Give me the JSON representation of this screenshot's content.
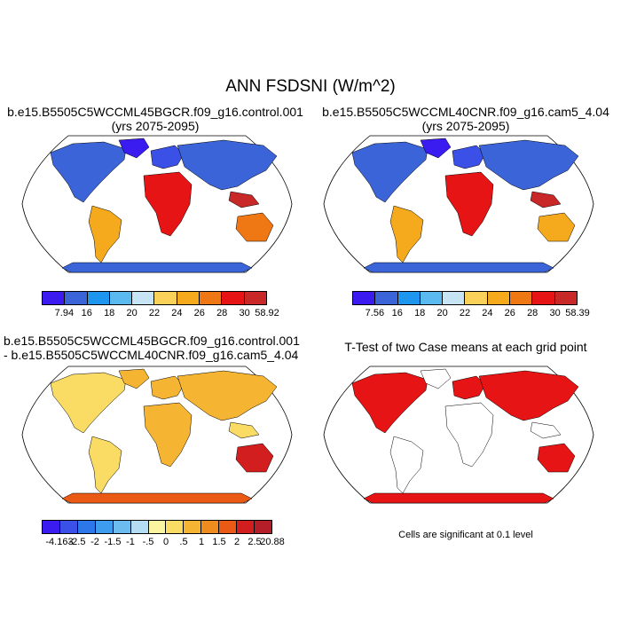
{
  "title": "ANN FSDSNI (W/m^2)",
  "panels": {
    "p1": {
      "title_line1": "b.e15.B5505C5WCCML45BGCR.f09_g16.control.001",
      "title_line2": "(yrs 2075-2095)",
      "colors": [
        "#3a1cf0",
        "#3a64d8",
        "#1e96f0",
        "#5ab9ee",
        "#c6e4f3",
        "#fad25a",
        "#f5aa1e",
        "#f07814",
        "#e61414",
        "#c82828"
      ],
      "labels": [
        "7.94",
        "16",
        "18",
        "20",
        "22",
        "24",
        "26",
        "28",
        "30",
        "58.92"
      ]
    },
    "p2": {
      "title_line1": "b.e15.B5505C5WCCML40CNR.f09_g16.cam5_4.04",
      "title_line2": "(yrs 2075-2095)",
      "colors": [
        "#3a1cf0",
        "#3a64d8",
        "#1e96f0",
        "#5ab9ee",
        "#c6e4f3",
        "#fad25a",
        "#f5aa1e",
        "#f07814",
        "#e61414",
        "#c82828"
      ],
      "labels": [
        "7.56",
        "16",
        "18",
        "20",
        "22",
        "24",
        "26",
        "28",
        "30",
        "58.39"
      ]
    },
    "p3": {
      "title_line1": "b.e15.B5505C5WCCML45BGCR.f09_g16.control.001",
      "title_line2": "- b.e15.B5505C5WCCML40CNR.f09_g16.cam5_4.04",
      "colors": [
        "#3a1cf0",
        "#3a50e6",
        "#2c78ea",
        "#3e9cee",
        "#6cbcef",
        "#b4dcf2",
        "#fbf5a0",
        "#fadc64",
        "#f5b432",
        "#f08c1e",
        "#eb5a14",
        "#d21e1e",
        "#b41e28"
      ],
      "labels": [
        "-4.163",
        "-2.5",
        "-2",
        "-1.5",
        "-1",
        "-.5",
        "0",
        ".5",
        "1",
        "1.5",
        "2",
        "2.5",
        "20.88"
      ]
    },
    "p4": {
      "title": "T-Test of two Case means at each grid point",
      "note": "Cells are significant at 0.1 level"
    }
  }
}
